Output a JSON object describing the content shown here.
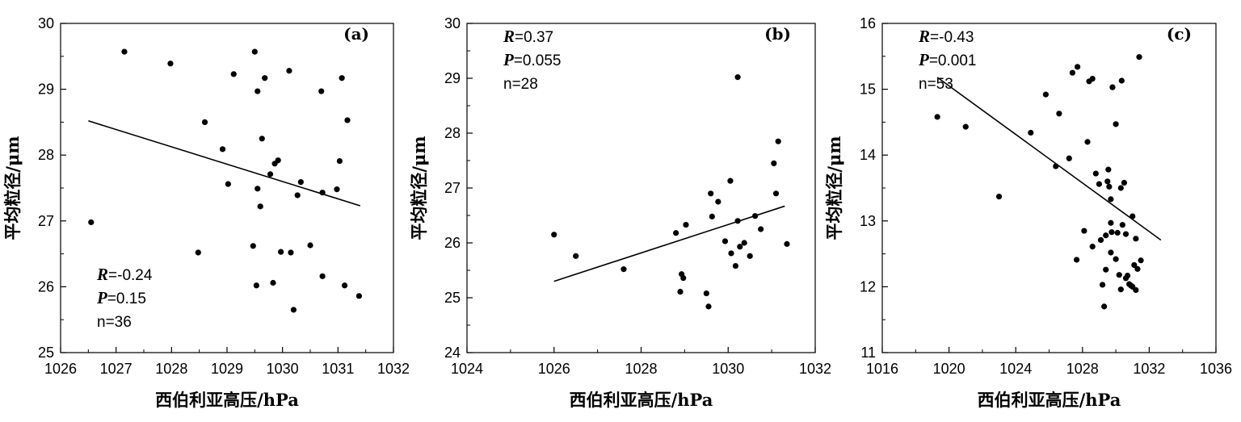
{
  "chart_data": [
    {
      "type": "scatter",
      "panel": "(a)",
      "xlabel": "西伯利亚高压/hPa",
      "ylabel": "平均粒径/μm",
      "xlim": [
        1026,
        1032
      ],
      "ylim": [
        25,
        30
      ],
      "xticks": [
        1026,
        1027,
        1028,
        1029,
        1030,
        1031,
        1032
      ],
      "yticks": [
        25,
        26,
        27,
        28,
        29,
        30
      ],
      "stats": {
        "r_key": "R",
        "r_value": "=-0.24",
        "p_key": "P",
        "p_value": "=0.15",
        "n": "n=36"
      },
      "fit_line": {
        "x": [
          1026.5,
          1031.4
        ],
        "y": [
          28.52,
          27.23
        ]
      },
      "points": [
        [
          1026.55,
          26.98
        ],
        [
          1027.15,
          29.57
        ],
        [
          1027.98,
          29.39
        ],
        [
          1028.48,
          26.52
        ],
        [
          1028.6,
          28.5
        ],
        [
          1028.92,
          28.09
        ],
        [
          1029.02,
          27.56
        ],
        [
          1029.12,
          29.23
        ],
        [
          1029.47,
          26.62
        ],
        [
          1029.5,
          29.57
        ],
        [
          1029.53,
          26.02
        ],
        [
          1029.55,
          27.49
        ],
        [
          1029.55,
          28.97
        ],
        [
          1029.6,
          27.22
        ],
        [
          1029.63,
          28.25
        ],
        [
          1029.68,
          29.17
        ],
        [
          1029.78,
          27.71
        ],
        [
          1029.83,
          26.06
        ],
        [
          1029.86,
          27.87
        ],
        [
          1029.92,
          27.92
        ],
        [
          1029.97,
          26.53
        ],
        [
          1030.12,
          29.28
        ],
        [
          1030.15,
          26.52
        ],
        [
          1030.2,
          25.65
        ],
        [
          1030.27,
          27.39
        ],
        [
          1030.33,
          27.59
        ],
        [
          1030.5,
          26.63
        ],
        [
          1030.7,
          28.97
        ],
        [
          1030.72,
          27.43
        ],
        [
          1030.72,
          26.16
        ],
        [
          1030.98,
          27.48
        ],
        [
          1031.03,
          27.91
        ],
        [
          1031.07,
          29.17
        ],
        [
          1031.12,
          26.02
        ],
        [
          1031.17,
          28.53
        ],
        [
          1031.38,
          25.86
        ]
      ]
    },
    {
      "type": "scatter",
      "panel": "(b)",
      "xlabel": "西伯利亚高压/hPa",
      "ylabel": "平均粒径/μm",
      "xlim": [
        1024,
        1032
      ],
      "ylim": [
        24,
        30
      ],
      "xticks": [
        1024,
        1026,
        1028,
        1030,
        1032
      ],
      "yticks": [
        24,
        25,
        26,
        27,
        28,
        29,
        30
      ],
      "stats": {
        "r_key": "R",
        "r_value": "=0.37",
        "p_key": "P",
        "p_value": "=0.055",
        "n": "n=28"
      },
      "fit_line": {
        "x": [
          1026.0,
          1031.3
        ],
        "y": [
          25.3,
          26.67
        ]
      },
      "points": [
        [
          1026.0,
          26.15
        ],
        [
          1026.5,
          25.76
        ],
        [
          1027.6,
          25.52
        ],
        [
          1028.8,
          26.18
        ],
        [
          1028.9,
          25.11
        ],
        [
          1028.93,
          25.43
        ],
        [
          1028.97,
          25.36
        ],
        [
          1029.03,
          26.33
        ],
        [
          1029.5,
          25.08
        ],
        [
          1029.55,
          24.84
        ],
        [
          1029.6,
          26.9
        ],
        [
          1029.63,
          26.48
        ],
        [
          1029.77,
          26.75
        ],
        [
          1029.93,
          26.03
        ],
        [
          1030.05,
          27.13
        ],
        [
          1030.07,
          25.81
        ],
        [
          1030.17,
          25.58
        ],
        [
          1030.22,
          29.02
        ],
        [
          1030.22,
          26.4
        ],
        [
          1030.27,
          25.93
        ],
        [
          1030.37,
          26.0
        ],
        [
          1030.5,
          25.76
        ],
        [
          1030.62,
          26.49
        ],
        [
          1030.75,
          26.25
        ],
        [
          1031.05,
          27.45
        ],
        [
          1031.1,
          26.9
        ],
        [
          1031.15,
          27.85
        ],
        [
          1031.35,
          25.98
        ]
      ]
    },
    {
      "type": "scatter",
      "panel": "(c)",
      "xlabel": "西伯利亚高压/hPa",
      "ylabel": "平均粒径/μm",
      "xlim": [
        1016,
        1036
      ],
      "ylim": [
        11,
        16
      ],
      "xticks": [
        1016,
        1020,
        1024,
        1028,
        1032,
        1036
      ],
      "yticks": [
        11,
        12,
        13,
        14,
        15,
        16
      ],
      "stats": {
        "r_key": "R",
        "r_value": "=-0.43",
        "p_key": "P",
        "p_value": "=0.001",
        "n": "n=53"
      },
      "fit_line": {
        "x": [
          1019.3,
          1032.7
        ],
        "y": [
          15.18,
          12.71
        ]
      },
      "points": [
        [
          1019.3,
          14.58
        ],
        [
          1021.0,
          14.43
        ],
        [
          1023.0,
          13.37
        ],
        [
          1024.9,
          14.34
        ],
        [
          1025.8,
          14.92
        ],
        [
          1026.4,
          13.83
        ],
        [
          1026.6,
          14.63
        ],
        [
          1027.2,
          13.95
        ],
        [
          1027.4,
          15.25
        ],
        [
          1027.7,
          15.34
        ],
        [
          1027.65,
          12.41
        ],
        [
          1028.1,
          12.85
        ],
        [
          1028.3,
          14.2
        ],
        [
          1028.4,
          15.12
        ],
        [
          1028.6,
          15.16
        ],
        [
          1028.6,
          12.61
        ],
        [
          1028.8,
          13.72
        ],
        [
          1029.0,
          13.56
        ],
        [
          1029.1,
          12.71
        ],
        [
          1029.2,
          12.03
        ],
        [
          1029.3,
          11.7
        ],
        [
          1029.4,
          12.26
        ],
        [
          1029.4,
          12.78
        ],
        [
          1029.5,
          13.6
        ],
        [
          1029.55,
          13.78
        ],
        [
          1029.6,
          13.52
        ],
        [
          1029.7,
          13.33
        ],
        [
          1029.7,
          12.52
        ],
        [
          1029.75,
          12.83
        ],
        [
          1029.7,
          12.97
        ],
        [
          1029.8,
          15.03
        ],
        [
          1030.0,
          12.42
        ],
        [
          1030.1,
          12.82
        ],
        [
          1030.0,
          14.47
        ],
        [
          1030.2,
          12.18
        ],
        [
          1030.3,
          13.5
        ],
        [
          1030.3,
          11.96
        ],
        [
          1030.35,
          15.13
        ],
        [
          1030.4,
          12.94
        ],
        [
          1030.5,
          13.58
        ],
        [
          1030.6,
          12.13
        ],
        [
          1030.6,
          12.8
        ],
        [
          1030.7,
          12.17
        ],
        [
          1030.8,
          12.04
        ],
        [
          1030.9,
          12.02
        ],
        [
          1031.0,
          12.0
        ],
        [
          1031.0,
          13.07
        ],
        [
          1031.1,
          12.33
        ],
        [
          1031.2,
          11.95
        ],
        [
          1031.2,
          12.73
        ],
        [
          1031.3,
          12.27
        ],
        [
          1031.4,
          15.49
        ],
        [
          1031.5,
          12.4
        ]
      ]
    }
  ]
}
